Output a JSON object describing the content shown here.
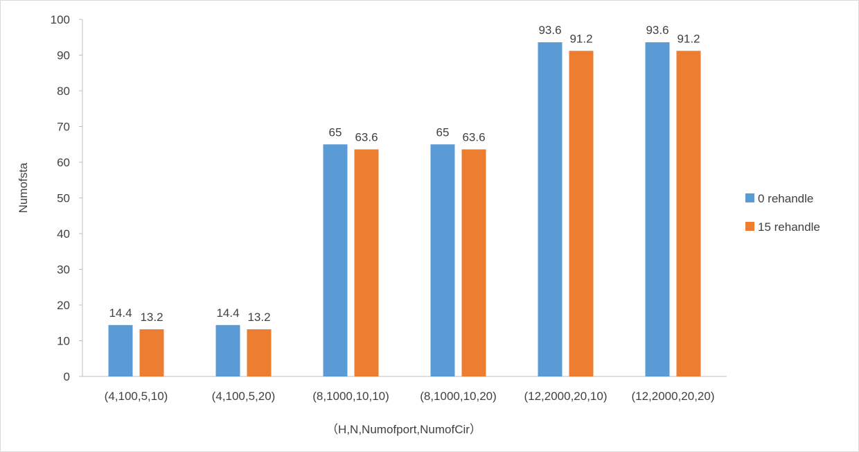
{
  "chart_data": {
    "type": "bar",
    "title": "",
    "xlabel": "（H,N,Numofport,NumofCir）",
    "ylabel": "Numofsta",
    "ylim": [
      0,
      100
    ],
    "yticks": [
      0,
      10,
      20,
      30,
      40,
      50,
      60,
      70,
      80,
      90,
      100
    ],
    "categories": [
      "(4,100,5,10)",
      "(4,100,5,20)",
      "(8,1000,10,10)",
      "(8,1000,10,20)",
      "(12,2000,20,10)",
      "(12,2000,20,20)"
    ],
    "series": [
      {
        "name": "0 rehandle",
        "values": [
          14.4,
          14.4,
          65,
          65,
          93.6,
          93.6
        ],
        "color": "#5b9bd5"
      },
      {
        "name": "15  rehandle",
        "values": [
          13.2,
          13.2,
          63.6,
          63.6,
          91.2,
          91.2
        ],
        "color": "#ed7d31"
      }
    ],
    "grid": false,
    "legend_position": "right"
  }
}
